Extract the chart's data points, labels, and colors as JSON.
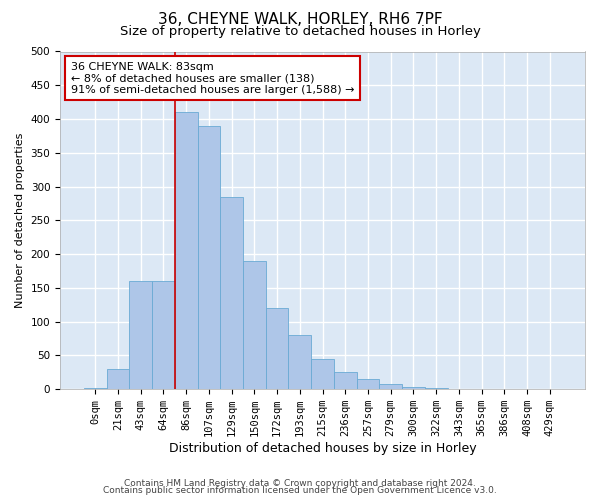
{
  "title1": "36, CHEYNE WALK, HORLEY, RH6 7PF",
  "title2": "Size of property relative to detached houses in Horley",
  "xlabel": "Distribution of detached houses by size in Horley",
  "ylabel": "Number of detached properties",
  "footnote1": "Contains HM Land Registry data © Crown copyright and database right 2024.",
  "footnote2": "Contains public sector information licensed under the Open Government Licence v3.0.",
  "bar_labels": [
    "0sqm",
    "21sqm",
    "43sqm",
    "64sqm",
    "86sqm",
    "107sqm",
    "129sqm",
    "150sqm",
    "172sqm",
    "193sqm",
    "215sqm",
    "236sqm",
    "257sqm",
    "279sqm",
    "300sqm",
    "322sqm",
    "343sqm",
    "365sqm",
    "386sqm",
    "408sqm",
    "429sqm"
  ],
  "bar_values": [
    2,
    30,
    160,
    160,
    410,
    390,
    285,
    190,
    120,
    80,
    45,
    25,
    15,
    8,
    3,
    2,
    1,
    0.5,
    0.5,
    0.2,
    0.1
  ],
  "bar_color": "#aec6e8",
  "bar_edgecolor": "#6aaad4",
  "background_color": "#dce8f5",
  "grid_color": "#ffffff",
  "annotation_text": "36 CHEYNE WALK: 83sqm\n← 8% of detached houses are smaller (138)\n91% of semi-detached houses are larger (1,588) →",
  "annotation_box_color": "#ffffff",
  "annotation_box_edgecolor": "#cc0000",
  "red_line_x": 3.5,
  "ylim": [
    0,
    500
  ],
  "yticks": [
    0,
    50,
    100,
    150,
    200,
    250,
    300,
    350,
    400,
    450,
    500
  ],
  "title_fontsize": 11,
  "subtitle_fontsize": 9.5,
  "xlabel_fontsize": 9,
  "ylabel_fontsize": 8,
  "tick_fontsize": 7.5,
  "annot_fontsize": 8,
  "footnote_fontsize": 6.5
}
